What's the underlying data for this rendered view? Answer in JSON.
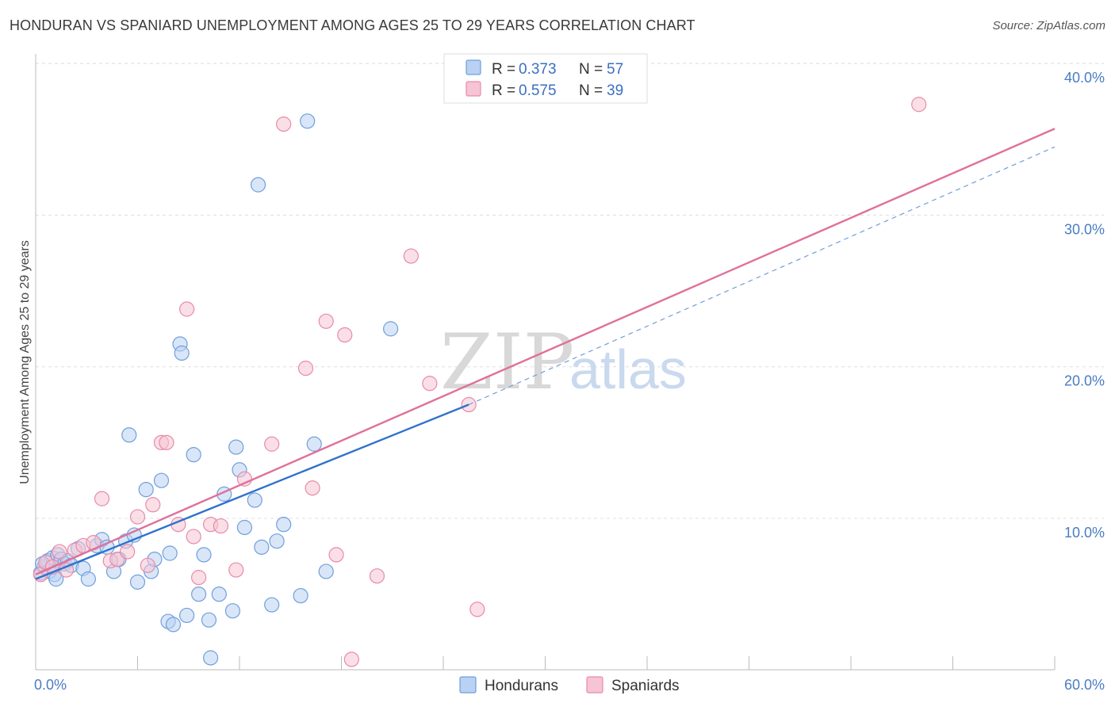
{
  "title": "HONDURAN VS SPANIARD UNEMPLOYMENT AMONG AGES 25 TO 29 YEARS CORRELATION CHART",
  "source": "Source: ZipAtlas.com",
  "watermark": {
    "zip": "ZIP",
    "atlas": "atlas"
  },
  "colors": {
    "blue": "#6f9fdc",
    "blue_fill": "#b9d1f2",
    "blue_line": "#2f72cc",
    "pink": "#e98aa9",
    "pink_fill": "#f6c4d4",
    "pink_line": "#e0709a",
    "grid": "#dddddd",
    "axis_text": "#4a7cc4"
  },
  "legend": {
    "rows": [
      {
        "r_label": "R = ",
        "r_value": "0.373",
        "n_label": "N = ",
        "n_value": "57"
      },
      {
        "r_label": "R = ",
        "r_value": "0.575",
        "n_label": "N = ",
        "n_value": "39"
      }
    ]
  },
  "chart_data": {
    "type": "scatter",
    "xlabel": "",
    "ylabel": "Unemployment Among Ages 25 to 29 years",
    "xlim": [
      0,
      60
    ],
    "ylim": [
      0,
      40
    ],
    "x_tick_labels": [
      {
        "value": 0,
        "label": "0.0%"
      },
      {
        "value": 60,
        "label": "60.0%"
      }
    ],
    "y_tick_labels": [
      {
        "value": 10,
        "label": "10.0%"
      },
      {
        "value": 20,
        "label": "20.0%"
      },
      {
        "value": 30,
        "label": "30.0%"
      },
      {
        "value": 40,
        "label": "40.0%"
      }
    ],
    "series": [
      {
        "name": "Hondurans",
        "color": "blue",
        "r": 0.373,
        "n": 57,
        "trend": {
          "x0": 0,
          "y0": 6.0,
          "x1": 25.5,
          "y1": 17.5,
          "dash_x1": 60,
          "dash_y1": 34.5
        },
        "points": [
          [
            0.3,
            6.4
          ],
          [
            0.5,
            6.8
          ],
          [
            0.7,
            7.2
          ],
          [
            0.8,
            6.5
          ],
          [
            1.0,
            7.4
          ],
          [
            1.1,
            6.3
          ],
          [
            1.3,
            7.6
          ],
          [
            1.5,
            7.3
          ],
          [
            1.7,
            7.0
          ],
          [
            1.9,
            7.2
          ],
          [
            2.1,
            6.9
          ],
          [
            2.5,
            8.0
          ],
          [
            2.8,
            6.7
          ],
          [
            3.1,
            6.0
          ],
          [
            3.6,
            8.2
          ],
          [
            3.9,
            8.6
          ],
          [
            4.2,
            8.1
          ],
          [
            4.6,
            6.5
          ],
          [
            4.9,
            7.3
          ],
          [
            5.3,
            8.5
          ],
          [
            5.5,
            15.5
          ],
          [
            5.8,
            8.9
          ],
          [
            6.0,
            5.8
          ],
          [
            6.5,
            11.9
          ],
          [
            6.8,
            6.5
          ],
          [
            7.0,
            7.3
          ],
          [
            7.4,
            12.5
          ],
          [
            7.9,
            7.7
          ],
          [
            7.8,
            3.2
          ],
          [
            8.1,
            3.0
          ],
          [
            8.5,
            21.5
          ],
          [
            8.6,
            20.9
          ],
          [
            8.9,
            3.6
          ],
          [
            9.3,
            14.2
          ],
          [
            9.6,
            5.0
          ],
          [
            9.9,
            7.6
          ],
          [
            10.2,
            3.3
          ],
          [
            10.3,
            0.8
          ],
          [
            10.8,
            5.0
          ],
          [
            11.1,
            11.6
          ],
          [
            11.6,
            3.9
          ],
          [
            11.8,
            14.7
          ],
          [
            12.0,
            13.2
          ],
          [
            12.3,
            9.4
          ],
          [
            12.9,
            11.2
          ],
          [
            13.1,
            32.0
          ],
          [
            13.3,
            8.1
          ],
          [
            13.9,
            4.3
          ],
          [
            14.2,
            8.5
          ],
          [
            14.6,
            9.6
          ],
          [
            15.6,
            4.9
          ],
          [
            16.0,
            36.2
          ],
          [
            16.4,
            14.9
          ],
          [
            17.1,
            6.5
          ],
          [
            20.9,
            22.5
          ],
          [
            1.2,
            6.0
          ],
          [
            0.4,
            7.0
          ]
        ]
      },
      {
        "name": "Spaniards",
        "color": "pink",
        "r": 0.575,
        "n": 39,
        "trend": {
          "x0": 0,
          "y0": 6.3,
          "x1": 60,
          "y1": 35.7
        },
        "points": [
          [
            0.3,
            6.3
          ],
          [
            0.6,
            7.1
          ],
          [
            1.0,
            6.8
          ],
          [
            1.4,
            7.8
          ],
          [
            1.8,
            6.6
          ],
          [
            2.3,
            7.9
          ],
          [
            2.8,
            8.2
          ],
          [
            3.4,
            8.4
          ],
          [
            3.9,
            11.3
          ],
          [
            4.4,
            7.2
          ],
          [
            4.8,
            7.3
          ],
          [
            5.4,
            7.8
          ],
          [
            6.0,
            10.1
          ],
          [
            6.6,
            6.9
          ],
          [
            6.9,
            10.9
          ],
          [
            7.4,
            15.0
          ],
          [
            7.7,
            15.0
          ],
          [
            8.4,
            9.6
          ],
          [
            8.9,
            23.8
          ],
          [
            9.3,
            8.8
          ],
          [
            9.6,
            6.1
          ],
          [
            10.3,
            9.6
          ],
          [
            10.9,
            9.5
          ],
          [
            11.8,
            6.6
          ],
          [
            12.3,
            12.6
          ],
          [
            13.9,
            14.9
          ],
          [
            14.6,
            36.0
          ],
          [
            15.9,
            19.9
          ],
          [
            16.3,
            12.0
          ],
          [
            17.1,
            23.0
          ],
          [
            17.7,
            7.6
          ],
          [
            18.2,
            22.1
          ],
          [
            18.6,
            0.7
          ],
          [
            20.1,
            6.2
          ],
          [
            22.1,
            27.3
          ],
          [
            23.2,
            18.9
          ],
          [
            25.5,
            17.5
          ],
          [
            26.0,
            4.0
          ],
          [
            52.0,
            37.3
          ]
        ]
      }
    ]
  },
  "bottom_legend": [
    {
      "label": "Hondurans",
      "color": "blue"
    },
    {
      "label": "Spaniards",
      "color": "pink"
    }
  ]
}
